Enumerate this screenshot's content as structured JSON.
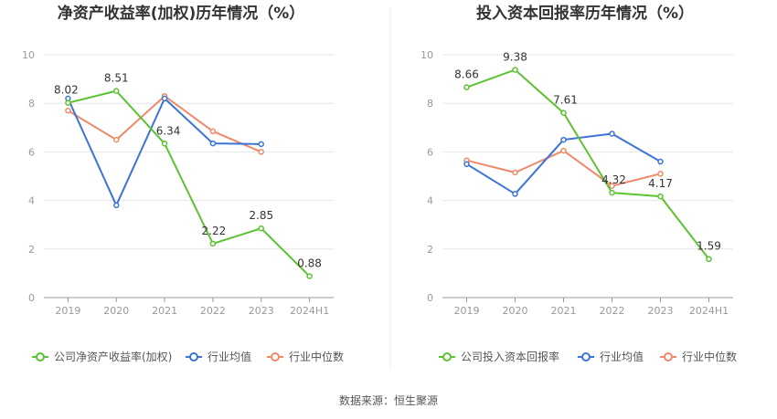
{
  "source_label": "数据来源：恒生聚源",
  "colors": {
    "company": "#5CC231",
    "avg": "#3C73D7",
    "median": "#EE8A6A",
    "grid": "#E6E6E6",
    "axis": "#999999"
  },
  "chart_data": [
    {
      "type": "line",
      "title": "净资产收益率(加权)历年情况（%）",
      "categories": [
        "2019",
        "2020",
        "2021",
        "2022",
        "2023",
        "2024H1"
      ],
      "ylim": [
        0,
        10
      ],
      "yticks": [
        "0",
        "2",
        "4",
        "6",
        "8",
        "10"
      ],
      "grid": true,
      "legend_position": "bottom",
      "series": [
        {
          "name": "公司净资产收益率(加权)",
          "color_key": "company",
          "labeled": true,
          "values": [
            8.02,
            8.51,
            6.34,
            2.22,
            2.85,
            0.88
          ],
          "labels": [
            "8.02",
            "8.51",
            "6.34",
            "2.22",
            "2.85",
            "0.88"
          ]
        },
        {
          "name": "行业均值",
          "color_key": "avg",
          "labeled": false,
          "values": [
            8.2,
            3.8,
            8.2,
            6.35,
            6.32,
            null
          ]
        },
        {
          "name": "行业中位数",
          "color_key": "median",
          "labeled": false,
          "values": [
            7.7,
            6.5,
            8.3,
            6.85,
            6.0,
            null
          ]
        }
      ]
    },
    {
      "type": "line",
      "title": "投入资本回报率历年情况（%）",
      "categories": [
        "2019",
        "2020",
        "2021",
        "2022",
        "2023",
        "2024H1"
      ],
      "ylim": [
        0,
        10
      ],
      "yticks": [
        "0",
        "2",
        "4",
        "6",
        "8",
        "10"
      ],
      "grid": true,
      "legend_position": "bottom",
      "series": [
        {
          "name": "公司投入资本回报率",
          "color_key": "company",
          "labeled": true,
          "values": [
            8.66,
            9.38,
            7.61,
            4.32,
            4.17,
            1.59
          ],
          "labels": [
            "8.66",
            "9.38",
            "7.61",
            "4.32",
            "4.17",
            "1.59"
          ]
        },
        {
          "name": "行业均值",
          "color_key": "avg",
          "labeled": false,
          "values": [
            5.5,
            4.27,
            6.5,
            6.75,
            5.6,
            null
          ]
        },
        {
          "name": "行业中位数",
          "color_key": "median",
          "labeled": false,
          "values": [
            5.65,
            5.15,
            6.05,
            4.6,
            5.1,
            null
          ]
        }
      ]
    }
  ]
}
